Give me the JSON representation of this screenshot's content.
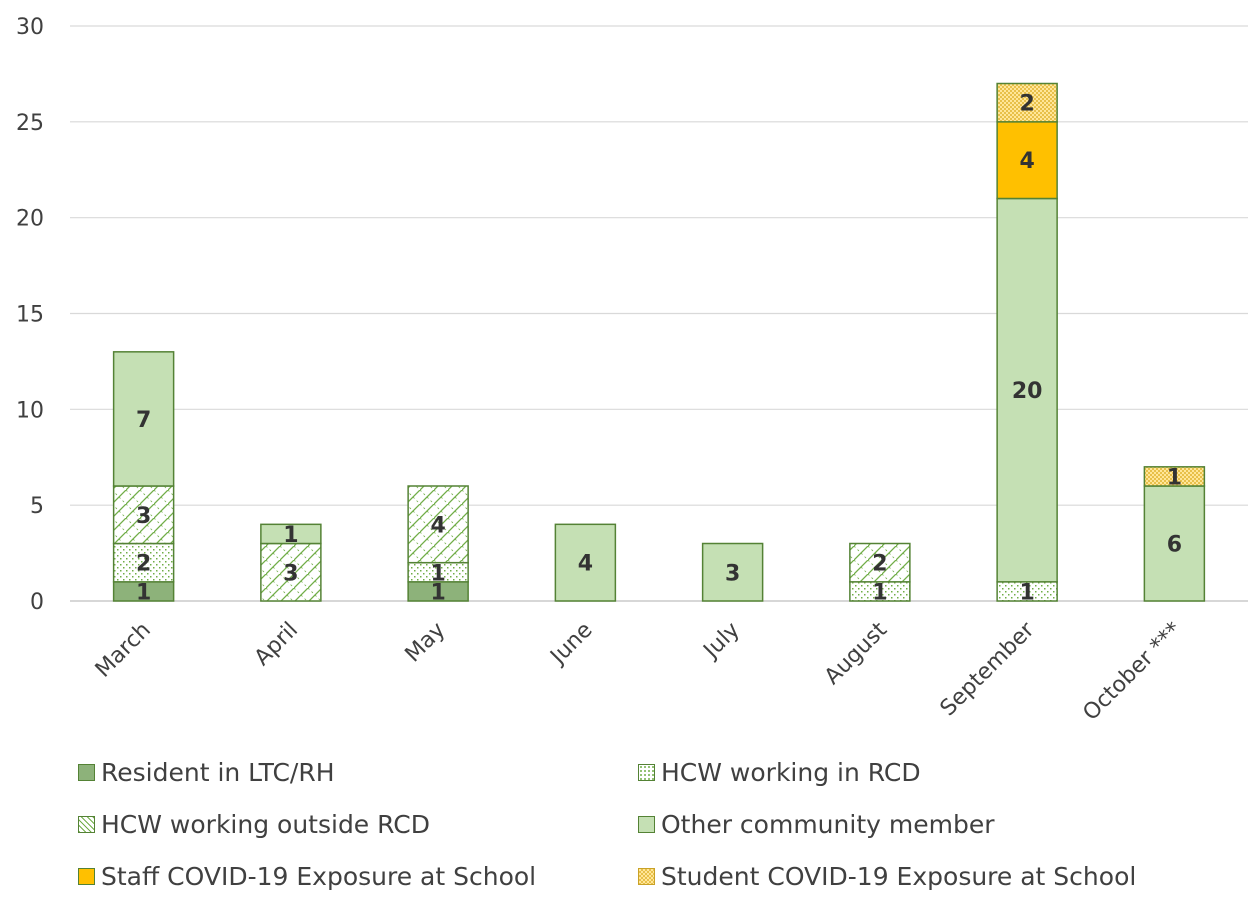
{
  "chart_data": {
    "type": "bar",
    "stacked": true,
    "categories": [
      "March",
      "April",
      "May",
      "June",
      "July",
      "August",
      "September",
      "October ***"
    ],
    "series": [
      {
        "name": "Resident in LTC/RH",
        "values": [
          1,
          0,
          1,
          0,
          0,
          0,
          0,
          0
        ],
        "color": "#8db27a",
        "pattern": "solid"
      },
      {
        "name": "HCW working in RCD",
        "values": [
          2,
          0,
          1,
          0,
          0,
          1,
          1,
          0
        ],
        "color": "#8db27a",
        "pattern": "dotted-grid"
      },
      {
        "name": "HCW working outside RCD",
        "values": [
          3,
          3,
          4,
          0,
          0,
          2,
          0,
          0
        ],
        "color": "#70ad47",
        "pattern": "diagonal-cross"
      },
      {
        "name": "Other community member",
        "values": [
          7,
          1,
          0,
          4,
          3,
          0,
          20,
          6
        ],
        "color": "#c5e0b4",
        "pattern": "solid"
      },
      {
        "name": "Staff COVID-19 Exposure at School",
        "values": [
          0,
          0,
          0,
          0,
          0,
          0,
          4,
          0
        ],
        "color": "#ffc000",
        "pattern": "solid"
      },
      {
        "name": "Student COVID-19 Exposure at School",
        "values": [
          0,
          0,
          0,
          0,
          0,
          0,
          2,
          1
        ],
        "color": "#ffe699",
        "pattern": "small-checker"
      }
    ],
    "ylim": [
      0,
      30
    ],
    "yticks": [
      0,
      5,
      10,
      15,
      20,
      25,
      30
    ],
    "grid": true,
    "bar_outline_color": "#548235",
    "legend_position": "bottom",
    "title": "",
    "xlabel": "",
    "ylabel": ""
  }
}
